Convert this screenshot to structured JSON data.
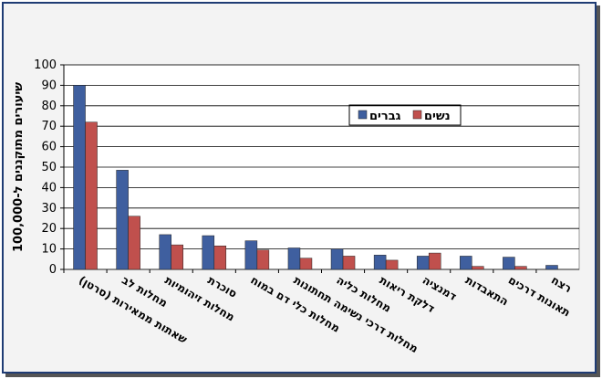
{
  "chart_data": {
    "type": "bar",
    "y_label": "שיעורים מתוקננים ל-100,000",
    "categories": [
      "שאתות ממאירות (סרטן)",
      "מחלות לב",
      "מחלות זיהומיות",
      "סוכרת",
      "מחלות כלי דם במוח",
      "מחלות דרכי נשימה תחתונות",
      "מחלות כליה",
      "דלקת ריאות",
      "דמנציה",
      "התאבדות",
      "תאונות דרכים",
      "רצח"
    ],
    "series": [
      {
        "name": "גברים",
        "color": "#3f5f9f",
        "values": [
          90,
          48.5,
          17,
          16.5,
          14,
          10.5,
          10,
          7,
          6.5,
          6.5,
          6,
          2
        ]
      },
      {
        "name": "נשים",
        "color": "#c0504d",
        "values": [
          72,
          26,
          12,
          11.5,
          9.5,
          5.5,
          6.5,
          4.5,
          8,
          1.5,
          1.5,
          0
        ]
      }
    ],
    "ylim": [
      0,
      100
    ],
    "yticks": [
      0,
      10,
      20,
      30,
      40,
      50,
      60,
      70,
      80,
      90,
      100
    ],
    "grid": true
  }
}
